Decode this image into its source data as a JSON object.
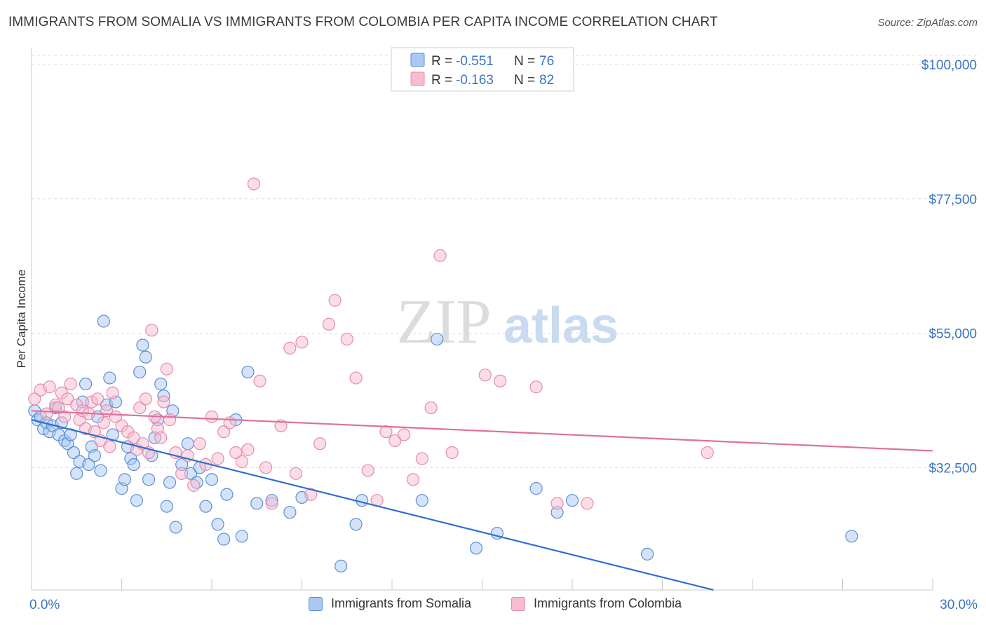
{
  "title": "IMMIGRANTS FROM SOMALIA VS IMMIGRANTS FROM COLOMBIA PER CAPITA INCOME CORRELATION CHART",
  "source": "Source: ZipAtlas.com",
  "watermark": {
    "zip": "ZIP",
    "atlas": "atlas"
  },
  "colors": {
    "somalia_fill": "#a9c8f2",
    "somalia_stroke": "#5b8fd6",
    "somalia_line": "#2e6fcf",
    "colombia_fill": "#f7bcd0",
    "colombia_stroke": "#e88aab",
    "colombia_line": "#e0709a",
    "axis_label": "#3a73c4",
    "grid": "#dcdcdc"
  },
  "legend": [
    {
      "r_label": "R =",
      "r_value": "-0.551",
      "n_label": "N =",
      "n_value": "76"
    },
    {
      "r_label": "R =",
      "r_value": "-0.163",
      "n_label": "N =",
      "n_value": "82"
    }
  ],
  "chart_data": {
    "type": "scatter",
    "ylabel": "Per Capita Income",
    "xlim": [
      0,
      30
    ],
    "ylim": [
      12000,
      102000
    ],
    "x_tick_labels": [
      {
        "value": 0,
        "label": "0.0%"
      },
      {
        "value": 30,
        "label": "30.0%"
      }
    ],
    "y_ticks": [
      {
        "value": 100000,
        "label": "$100,000"
      },
      {
        "value": 77500,
        "label": "$77,500"
      },
      {
        "value": 55000,
        "label": "$55,000"
      },
      {
        "value": 32500,
        "label": "$32,500"
      }
    ],
    "series": [
      {
        "name": "Immigrants from Somalia",
        "r": -0.551,
        "n": 76,
        "trend": {
          "x": [
            0,
            22.7
          ],
          "y": [
            40500,
            12000
          ]
        },
        "points": [
          [
            0.1,
            42000
          ],
          [
            0.2,
            40500
          ],
          [
            0.3,
            41000
          ],
          [
            0.4,
            39000
          ],
          [
            0.5,
            40000
          ],
          [
            0.6,
            38500
          ],
          [
            0.7,
            39500
          ],
          [
            0.8,
            42500
          ],
          [
            0.9,
            38000
          ],
          [
            1.0,
            40000
          ],
          [
            1.1,
            37000
          ],
          [
            1.2,
            36500
          ],
          [
            1.3,
            38000
          ],
          [
            1.4,
            35000
          ],
          [
            1.5,
            31500
          ],
          [
            1.6,
            33500
          ],
          [
            1.7,
            43500
          ],
          [
            1.8,
            46500
          ],
          [
            1.9,
            33000
          ],
          [
            2.0,
            36000
          ],
          [
            2.1,
            34500
          ],
          [
            2.2,
            41000
          ],
          [
            2.3,
            32000
          ],
          [
            2.4,
            57000
          ],
          [
            2.5,
            43000
          ],
          [
            2.6,
            47500
          ],
          [
            2.7,
            38000
          ],
          [
            2.8,
            43500
          ],
          [
            3.0,
            29000
          ],
          [
            3.1,
            30500
          ],
          [
            3.2,
            36000
          ],
          [
            3.3,
            34000
          ],
          [
            3.4,
            33000
          ],
          [
            3.5,
            27000
          ],
          [
            3.6,
            48500
          ],
          [
            3.7,
            53000
          ],
          [
            3.8,
            51000
          ],
          [
            3.9,
            30500
          ],
          [
            4.0,
            34500
          ],
          [
            4.1,
            37500
          ],
          [
            4.2,
            40500
          ],
          [
            4.3,
            46500
          ],
          [
            4.4,
            44500
          ],
          [
            4.5,
            26000
          ],
          [
            4.6,
            30000
          ],
          [
            4.7,
            42000
          ],
          [
            4.8,
            22500
          ],
          [
            5.0,
            33000
          ],
          [
            5.2,
            36500
          ],
          [
            5.3,
            31500
          ],
          [
            5.5,
            30000
          ],
          [
            5.6,
            32500
          ],
          [
            5.8,
            26000
          ],
          [
            6.0,
            30500
          ],
          [
            6.2,
            23000
          ],
          [
            6.4,
            20500
          ],
          [
            6.5,
            28000
          ],
          [
            6.8,
            40500
          ],
          [
            7.0,
            21000
          ],
          [
            7.2,
            48500
          ],
          [
            7.5,
            26500
          ],
          [
            8.0,
            27000
          ],
          [
            8.6,
            25000
          ],
          [
            9.0,
            27500
          ],
          [
            10.3,
            16000
          ],
          [
            10.8,
            23000
          ],
          [
            11.0,
            27000
          ],
          [
            13.0,
            27000
          ],
          [
            13.5,
            54000
          ],
          [
            14.8,
            19000
          ],
          [
            15.5,
            21500
          ],
          [
            16.8,
            29000
          ],
          [
            17.5,
            25000
          ],
          [
            18.0,
            27000
          ],
          [
            20.5,
            18000
          ],
          [
            27.3,
            21000
          ]
        ]
      },
      {
        "name": "Immigrants from Colombia",
        "r": -0.163,
        "n": 82,
        "trend": {
          "x": [
            0,
            30
          ],
          "y": [
            42000,
            35300
          ]
        },
        "points": [
          [
            0.1,
            44000
          ],
          [
            0.3,
            45500
          ],
          [
            0.5,
            41500
          ],
          [
            0.6,
            46000
          ],
          [
            0.8,
            43000
          ],
          [
            0.9,
            42500
          ],
          [
            1.0,
            45000
          ],
          [
            1.1,
            41000
          ],
          [
            1.2,
            44000
          ],
          [
            1.3,
            46500
          ],
          [
            1.5,
            43000
          ],
          [
            1.6,
            40500
          ],
          [
            1.7,
            42000
          ],
          [
            1.8,
            39000
          ],
          [
            1.9,
            41500
          ],
          [
            2.0,
            43500
          ],
          [
            2.1,
            38500
          ],
          [
            2.2,
            44000
          ],
          [
            2.3,
            37000
          ],
          [
            2.4,
            40000
          ],
          [
            2.5,
            42000
          ],
          [
            2.6,
            36000
          ],
          [
            2.7,
            45000
          ],
          [
            2.8,
            41000
          ],
          [
            3.0,
            39500
          ],
          [
            3.2,
            38500
          ],
          [
            3.4,
            37500
          ],
          [
            3.5,
            35500
          ],
          [
            3.6,
            42500
          ],
          [
            3.7,
            36500
          ],
          [
            3.8,
            44000
          ],
          [
            3.9,
            35000
          ],
          [
            4.0,
            55500
          ],
          [
            4.1,
            41000
          ],
          [
            4.2,
            39000
          ],
          [
            4.3,
            37500
          ],
          [
            4.4,
            43500
          ],
          [
            4.5,
            49000
          ],
          [
            4.6,
            40500
          ],
          [
            4.8,
            35000
          ],
          [
            5.0,
            31500
          ],
          [
            5.2,
            34500
          ],
          [
            5.4,
            29500
          ],
          [
            5.6,
            36500
          ],
          [
            5.8,
            33000
          ],
          [
            6.0,
            41000
          ],
          [
            6.2,
            34000
          ],
          [
            6.4,
            38500
          ],
          [
            6.6,
            40000
          ],
          [
            6.8,
            35000
          ],
          [
            7.0,
            33500
          ],
          [
            7.2,
            35500
          ],
          [
            7.4,
            80000
          ],
          [
            7.6,
            47000
          ],
          [
            7.8,
            32500
          ],
          [
            8.0,
            26500
          ],
          [
            8.3,
            39500
          ],
          [
            8.6,
            52500
          ],
          [
            8.8,
            31500
          ],
          [
            9.0,
            53500
          ],
          [
            9.3,
            28000
          ],
          [
            9.6,
            36500
          ],
          [
            9.9,
            56500
          ],
          [
            10.1,
            60500
          ],
          [
            10.5,
            54000
          ],
          [
            10.8,
            47500
          ],
          [
            11.2,
            32000
          ],
          [
            11.5,
            27000
          ],
          [
            11.8,
            38500
          ],
          [
            12.1,
            37000
          ],
          [
            12.4,
            38000
          ],
          [
            12.7,
            30500
          ],
          [
            13.0,
            34000
          ],
          [
            13.3,
            42500
          ],
          [
            13.6,
            68000
          ],
          [
            14.0,
            35000
          ],
          [
            15.1,
            48000
          ],
          [
            15.6,
            47000
          ],
          [
            16.8,
            46000
          ],
          [
            17.5,
            26500
          ],
          [
            18.5,
            26500
          ],
          [
            22.5,
            35000
          ]
        ]
      }
    ]
  }
}
